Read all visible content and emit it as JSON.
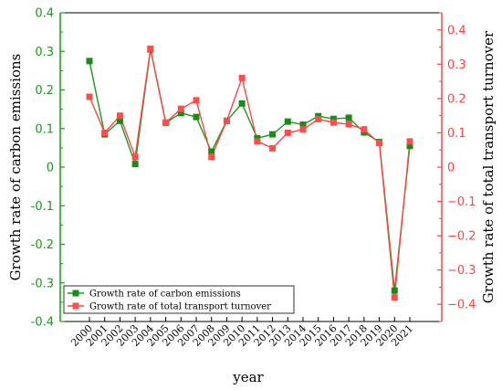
{
  "chart_data": {
    "type": "line",
    "xlabel": "year",
    "ylabel_left": "Growth rate of carbon emissions",
    "ylabel_right": "Growth rate of total transport turnover",
    "categories": [
      "2000",
      "2001",
      "2002",
      "2003",
      "2004",
      "2005",
      "2006",
      "2007",
      "2008",
      "2009",
      "2010",
      "2011",
      "2012",
      "2013",
      "2014",
      "2015",
      "2016",
      "2017",
      "2018",
      "2019",
      "2020",
      "2021"
    ],
    "left_axis": {
      "min": -0.4,
      "max": 0.4,
      "ticks": [
        -0.4,
        -0.3,
        -0.2,
        -0.1,
        0,
        0.1,
        0.2,
        0.3,
        0.4
      ],
      "tick_labels": [
        "-0.4",
        "-0.3",
        "-0.2",
        "-0.1",
        "0",
        "0.1",
        "0.2",
        "0.3",
        "0.4"
      ],
      "color": "#1a9a1a"
    },
    "right_axis": {
      "min": -0.45,
      "max": 0.45,
      "ticks": [
        -0.4,
        -0.3,
        -0.2,
        -0.1,
        0,
        0.1,
        0.2,
        0.3,
        0.4
      ],
      "tick_labels": [
        "−0.4",
        "−0.3",
        "−0.2",
        "−0.1",
        "0",
        "0.1",
        "0.2",
        "0.3",
        "0.4"
      ],
      "color": "#ff4444"
    },
    "series": [
      {
        "name": "Growth rate of carbon emissions",
        "axis": "left",
        "color": "#1a9a1a",
        "marker_color": "#1a8a1a",
        "values": [
          0.275,
          0.085,
          0.12,
          0.008,
          0.305,
          0.115,
          0.14,
          0.13,
          0.04,
          0.12,
          0.165,
          0.075,
          0.085,
          0.118,
          0.11,
          0.132,
          0.125,
          0.128,
          0.09,
          0.065,
          -0.32,
          0.055
        ]
      },
      {
        "name": "Growth rate of total transport turnover",
        "axis": "right",
        "color": "#ff4444",
        "marker_color": "#ff4d4d",
        "values": [
          0.205,
          0.1,
          0.15,
          0.03,
          0.345,
          0.13,
          0.17,
          0.195,
          0.03,
          0.135,
          0.26,
          0.075,
          0.055,
          0.1,
          0.11,
          0.14,
          0.13,
          0.125,
          0.11,
          0.07,
          -0.38,
          0.075
        ]
      }
    ],
    "legend_position": "bottom-left",
    "grid": false
  }
}
